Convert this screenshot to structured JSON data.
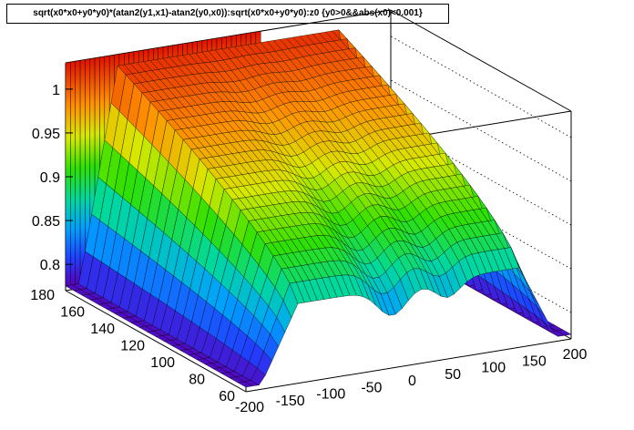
{
  "chart_data": {
    "type": "surface",
    "title": "sqrt(x0*x0+y0*y0)*(atan2(y1,x1)-atan2(y0,x0)):sqrt(x0*x0+y0*y0):z0 {y0>0&&abs(x0)<0.001}",
    "x_axis": {
      "range": [
        -200,
        200
      ],
      "ticks": [
        "-200",
        "-150",
        "-100",
        "-50",
        "0",
        "50",
        "100",
        "150",
        "200"
      ]
    },
    "y_axis": {
      "range": [
        60,
        180
      ],
      "ticks": [
        "60",
        "80",
        "100",
        "120",
        "140",
        "160",
        "180"
      ]
    },
    "z_axis": {
      "range": [
        0.77,
        1.03
      ],
      "ticks": [
        "0.8",
        "0.85",
        "0.9",
        "0.95",
        "1"
      ]
    },
    "colormap": "rainbow",
    "grid": true
  }
}
